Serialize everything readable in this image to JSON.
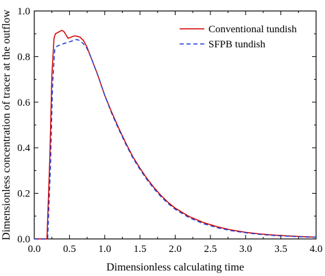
{
  "chart_data": {
    "type": "line",
    "xlabel": "Dimensionless calculating time",
    "ylabel": "Dimensionless concentration of tracer at the outflow",
    "xlim": [
      0.0,
      4.0
    ],
    "ylim": [
      0.0,
      1.0
    ],
    "x_ticks": [
      "0.0",
      "0.5",
      "1.0",
      "1.5",
      "2.0",
      "2.5",
      "3.0",
      "3.5",
      "4.0"
    ],
    "y_ticks": [
      "0.0",
      "0.2",
      "0.4",
      "0.6",
      "0.8",
      "1.0"
    ],
    "legend_position": "top-right",
    "grid": false,
    "series": [
      {
        "name": "Conventional tundish",
        "color": "#d40000",
        "style": "solid",
        "x": [
          0.0,
          0.18,
          0.22,
          0.25,
          0.28,
          0.3,
          0.33,
          0.36,
          0.39,
          0.42,
          0.45,
          0.48,
          0.52,
          0.56,
          0.6,
          0.65,
          0.7,
          0.75,
          0.8,
          0.9,
          1.0,
          1.1,
          1.2,
          1.3,
          1.4,
          1.5,
          1.6,
          1.7,
          1.8,
          1.9,
          2.0,
          2.2,
          2.4,
          2.6,
          2.8,
          3.0,
          3.2,
          3.4,
          3.6,
          3.8,
          4.0
        ],
        "y": [
          0.0,
          0.0,
          0.35,
          0.72,
          0.88,
          0.9,
          0.905,
          0.91,
          0.915,
          0.91,
          0.895,
          0.88,
          0.885,
          0.89,
          0.89,
          0.885,
          0.87,
          0.84,
          0.8,
          0.72,
          0.63,
          0.555,
          0.485,
          0.42,
          0.36,
          0.31,
          0.265,
          0.225,
          0.19,
          0.16,
          0.135,
          0.098,
          0.072,
          0.053,
          0.039,
          0.029,
          0.022,
          0.017,
          0.013,
          0.01,
          0.008
        ]
      },
      {
        "name": "SFPB tundish",
        "color": "#1f3fd1",
        "style": "dashed",
        "x": [
          0.0,
          0.19,
          0.23,
          0.26,
          0.29,
          0.32,
          0.36,
          0.4,
          0.45,
          0.5,
          0.55,
          0.6,
          0.65,
          0.7,
          0.75,
          0.8,
          0.9,
          1.0,
          1.1,
          1.2,
          1.3,
          1.4,
          1.5,
          1.6,
          1.7,
          1.8,
          1.9,
          2.0,
          2.2,
          2.4,
          2.6,
          2.8,
          3.0,
          3.2,
          3.4,
          3.6,
          3.8,
          4.0
        ],
        "y": [
          0.0,
          0.0,
          0.32,
          0.68,
          0.83,
          0.845,
          0.85,
          0.855,
          0.86,
          0.865,
          0.87,
          0.875,
          0.87,
          0.855,
          0.835,
          0.8,
          0.72,
          0.63,
          0.55,
          0.48,
          0.415,
          0.355,
          0.305,
          0.26,
          0.22,
          0.185,
          0.155,
          0.13,
          0.093,
          0.067,
          0.049,
          0.036,
          0.027,
          0.02,
          0.015,
          0.012,
          0.009,
          0.007
        ]
      }
    ]
  }
}
